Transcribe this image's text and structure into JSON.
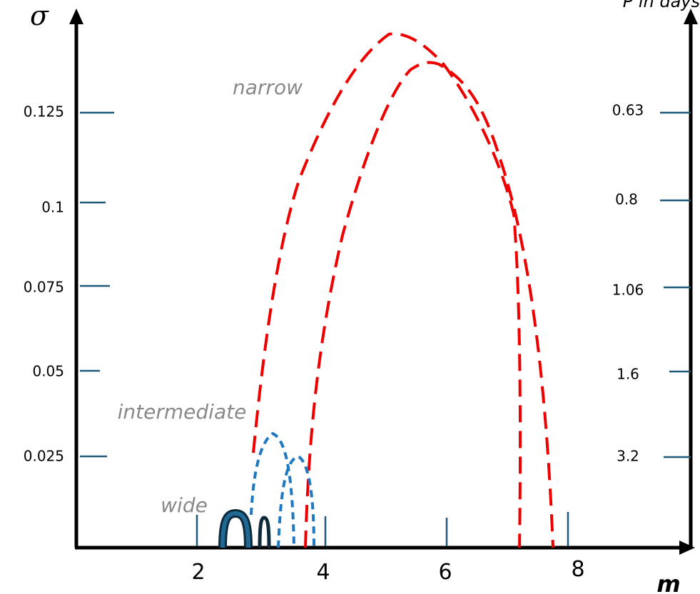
{
  "left_axis": {
    "label": "σ",
    "ticks": [
      "0.125",
      "0.1",
      "0.075",
      "0.05",
      "0.025"
    ]
  },
  "right_axis": {
    "label": "P in days",
    "ticks": [
      "0.63",
      "0.8",
      "1.06",
      "1.6",
      "3.2"
    ]
  },
  "x_axis": {
    "label": "m",
    "ticks": [
      "2",
      "4",
      "6",
      "8"
    ]
  },
  "regions": {
    "narrow": "narrow",
    "intermediate": "intermediate",
    "wide": "wide"
  }
}
